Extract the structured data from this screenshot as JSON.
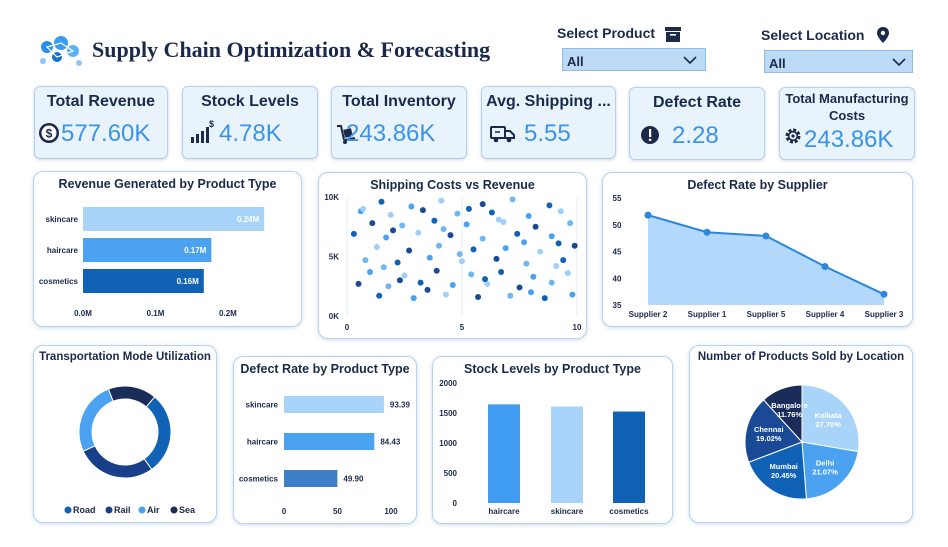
{
  "header": {
    "title": "Supply Chain Optimization & Forecasting",
    "logo_icon": "supply-chain-logo-icon"
  },
  "filters": {
    "product": {
      "label": "Select Product",
      "value": "All",
      "icon": "archive-box-icon"
    },
    "location": {
      "label": "Select Location",
      "value": "All",
      "icon": "map-pin-icon"
    }
  },
  "kpis": [
    {
      "title": "Total Revenue",
      "value": "577.60K",
      "icon": "dollar-coin-icon"
    },
    {
      "title": "Stock Levels",
      "value": "4.78K",
      "icon": "bar-chart-dollar-icon"
    },
    {
      "title": "Total Inventory",
      "value": "243.86K",
      "icon": "hand-truck-icon"
    },
    {
      "title": "Avg. Shipping ...",
      "value": "5.55",
      "icon": "delivery-truck-icon"
    },
    {
      "title": "Defect Rate",
      "value": "2.28",
      "icon": "alert-circle-icon"
    },
    {
      "title": "Total Manufacturing Costs",
      "value": "243.86K",
      "icon": "gear-icon"
    }
  ],
  "colors": {
    "dark_blue": "#0f62b6",
    "mid_blue": "#4aa2f0",
    "light_blue": "#9fd0fa",
    "navy": "#1a2d5a",
    "accent": "#3b93e8"
  },
  "chart_data": [
    {
      "id": "revenue_by_product",
      "type": "bar",
      "orientation": "horizontal",
      "title": "Revenue Generated by Product Type",
      "categories": [
        "skincare",
        "haircare",
        "cosmetics"
      ],
      "values": [
        0.24,
        0.17,
        0.16
      ],
      "data_labels": [
        "0.24M",
        "0.17M",
        "0.16M"
      ],
      "xticks": [
        "0.0M",
        "0.1M",
        "0.2M"
      ],
      "xlim": [
        0,
        0.3
      ],
      "colors": [
        "#a8d4fa",
        "#4aa2f0",
        "#0f62b6"
      ]
    },
    {
      "id": "shipping_vs_revenue",
      "type": "scatter",
      "title": "Shipping Costs vs Revenue",
      "xticks": [
        "0",
        "5",
        "10"
      ],
      "yticks": [
        "0K",
        "5K",
        "10K"
      ],
      "xlim": [
        0,
        10
      ],
      "ylim": [
        0,
        10000
      ],
      "points": [
        {
          "x": 1.5,
          "y": 9600
        },
        {
          "x": 2.8,
          "y": 9200
        },
        {
          "x": 4.1,
          "y": 9700
        },
        {
          "x": 5.9,
          "y": 9400
        },
        {
          "x": 7.2,
          "y": 9800
        },
        {
          "x": 8.8,
          "y": 9300
        },
        {
          "x": 0.6,
          "y": 8800
        },
        {
          "x": 1.9,
          "y": 8500
        },
        {
          "x": 3.3,
          "y": 8900
        },
        {
          "x": 4.8,
          "y": 8600
        },
        {
          "x": 6.3,
          "y": 8700
        },
        {
          "x": 7.9,
          "y": 8400
        },
        {
          "x": 9.3,
          "y": 8800
        },
        {
          "x": 1.1,
          "y": 7800
        },
        {
          "x": 2.4,
          "y": 7600
        },
        {
          "x": 3.8,
          "y": 8000
        },
        {
          "x": 5.2,
          "y": 7700
        },
        {
          "x": 6.8,
          "y": 7900
        },
        {
          "x": 8.2,
          "y": 7500
        },
        {
          "x": 9.7,
          "y": 7800
        },
        {
          "x": 0.3,
          "y": 6900
        },
        {
          "x": 1.7,
          "y": 6600
        },
        {
          "x": 3.1,
          "y": 7000
        },
        {
          "x": 4.5,
          "y": 6800
        },
        {
          "x": 5.9,
          "y": 6500
        },
        {
          "x": 7.4,
          "y": 6900
        },
        {
          "x": 8.9,
          "y": 6700
        },
        {
          "x": 1.3,
          "y": 5800
        },
        {
          "x": 2.7,
          "y": 5500
        },
        {
          "x": 4.0,
          "y": 5900
        },
        {
          "x": 5.5,
          "y": 5600
        },
        {
          "x": 6.9,
          "y": 5700
        },
        {
          "x": 8.4,
          "y": 5400
        },
        {
          "x": 9.9,
          "y": 5900
        },
        {
          "x": 0.8,
          "y": 4700
        },
        {
          "x": 2.2,
          "y": 4500
        },
        {
          "x": 3.6,
          "y": 4900
        },
        {
          "x": 5.0,
          "y": 4600
        },
        {
          "x": 6.5,
          "y": 4800
        },
        {
          "x": 7.8,
          "y": 4400
        },
        {
          "x": 9.4,
          "y": 4700
        },
        {
          "x": 1.0,
          "y": 3700
        },
        {
          "x": 2.5,
          "y": 3400
        },
        {
          "x": 3.9,
          "y": 3800
        },
        {
          "x": 5.4,
          "y": 3500
        },
        {
          "x": 6.7,
          "y": 3700
        },
        {
          "x": 8.1,
          "y": 3300
        },
        {
          "x": 9.6,
          "y": 3600
        },
        {
          "x": 0.5,
          "y": 2700
        },
        {
          "x": 1.8,
          "y": 2500
        },
        {
          "x": 3.2,
          "y": 2800
        },
        {
          "x": 4.6,
          "y": 2600
        },
        {
          "x": 6.1,
          "y": 2700
        },
        {
          "x": 7.5,
          "y": 2400
        },
        {
          "x": 8.9,
          "y": 2800
        },
        {
          "x": 1.4,
          "y": 1700
        },
        {
          "x": 2.9,
          "y": 1500
        },
        {
          "x": 4.3,
          "y": 1800
        },
        {
          "x": 5.7,
          "y": 1600
        },
        {
          "x": 7.1,
          "y": 1700
        },
        {
          "x": 8.6,
          "y": 1500
        },
        {
          "x": 9.8,
          "y": 1800
        },
        {
          "x": 0.7,
          "y": 9000
        },
        {
          "x": 2.0,
          "y": 7200
        },
        {
          "x": 4.9,
          "y": 5200
        },
        {
          "x": 6.0,
          "y": 3100
        },
        {
          "x": 7.7,
          "y": 6200
        },
        {
          "x": 9.1,
          "y": 4200
        },
        {
          "x": 3.5,
          "y": 2200
        },
        {
          "x": 1.6,
          "y": 4100
        },
        {
          "x": 5.3,
          "y": 9000
        },
        {
          "x": 8.0,
          "y": 2000
        },
        {
          "x": 6.6,
          "y": 8100
        },
        {
          "x": 2.3,
          "y": 3000
        },
        {
          "x": 4.2,
          "y": 7300
        },
        {
          "x": 9.2,
          "y": 6100
        }
      ]
    },
    {
      "id": "defect_by_supplier",
      "type": "area",
      "title": "Defect Rate by Supplier",
      "categories": [
        "Supplier 2",
        "Supplier 1",
        "Supplier 5",
        "Supplier 4",
        "Supplier 3"
      ],
      "values": [
        51.8,
        48.6,
        47.9,
        42.2,
        37.0
      ],
      "yticks": [
        "35",
        "40",
        "45",
        "50",
        "55"
      ],
      "ylim": [
        35,
        55
      ]
    },
    {
      "id": "transport_mode",
      "type": "pie",
      "variant": "donut",
      "title": "Transportation Mode Utilization",
      "categories": [
        "Road",
        "Rail",
        "Air",
        "Sea"
      ],
      "values": [
        29,
        28,
        26,
        17
      ],
      "colors": [
        "#0f62b6",
        "#1a3f8a",
        "#4aa2f0",
        "#1a2d5a"
      ]
    },
    {
      "id": "defect_by_product",
      "type": "bar",
      "orientation": "horizontal",
      "title": "Defect Rate by Product Type",
      "categories": [
        "skincare",
        "haircare",
        "cosmetics"
      ],
      "values": [
        93.39,
        84.43,
        49.9
      ],
      "data_labels": [
        "93.39",
        "84.43",
        "49.90"
      ],
      "xticks": [
        "0",
        "50",
        "100"
      ],
      "xlim": [
        0,
        100
      ],
      "colors": [
        "#a8d4fa",
        "#4aa2f0",
        "#3b80c8"
      ]
    },
    {
      "id": "stock_by_product",
      "type": "bar",
      "title": "Stock Levels by Product Type",
      "categories": [
        "haircare",
        "skincare",
        "cosmetics"
      ],
      "values": [
        1644,
        1608,
        1525
      ],
      "yticks": [
        "0",
        "500",
        "1000",
        "1500",
        "2000"
      ],
      "ylim": [
        0,
        2000
      ],
      "colors": [
        "#3f9cf0",
        "#a8d4fa",
        "#0f62b6"
      ]
    },
    {
      "id": "products_by_location",
      "type": "pie",
      "title": "Number of Products Sold by Location",
      "categories": [
        "Kolkata",
        "Delhi",
        "Mumbai",
        "Chennai",
        "Bangalore"
      ],
      "values": [
        27.7,
        21.07,
        20.45,
        19.02,
        11.76
      ],
      "labels": [
        "27.70%",
        "21.07%",
        "20.45%",
        "19.02%",
        "11.76%"
      ],
      "colors": [
        "#a8d4fa",
        "#4aa2f0",
        "#0f62b6",
        "#1a4a96",
        "#1a2d5a"
      ]
    }
  ]
}
